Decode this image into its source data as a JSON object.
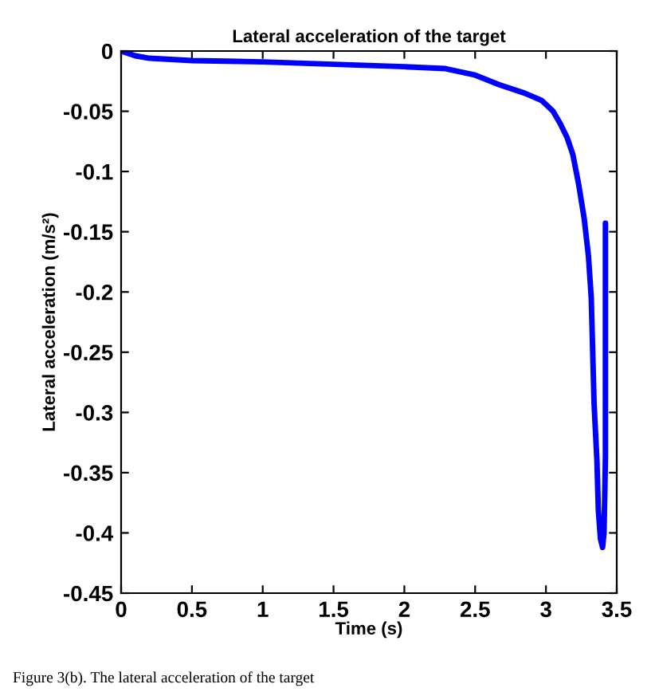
{
  "chart_data": {
    "type": "line",
    "title": "Lateral acceleration of the target",
    "xlabel": "Time (s)",
    "ylabel": "Lateral acceleration (m/s²)",
    "series": [
      {
        "color": "#0000ff",
        "x": [
          0,
          0.05,
          0.1,
          0.2,
          0.35,
          0.5,
          0.75,
          1,
          1.25,
          1.5,
          1.75,
          2,
          2.29,
          2.5,
          2.67,
          2.85,
          2.97,
          3.05,
          3.1,
          3.15,
          3.19,
          3.23,
          3.27,
          3.3,
          3.32,
          3.34,
          3.36,
          3.37,
          3.385,
          3.4,
          3.41,
          3.415,
          3.42,
          3.42
        ],
        "values": [
          0,
          -0.002,
          -0.004,
          -0.006,
          -0.007,
          -0.008,
          -0.0085,
          -0.009,
          -0.01,
          -0.011,
          -0.012,
          -0.013,
          -0.0146,
          -0.02,
          -0.028,
          -0.035,
          -0.041,
          -0.05,
          -0.06,
          -0.072,
          -0.086,
          -0.11,
          -0.139,
          -0.17,
          -0.205,
          -0.293,
          -0.34,
          -0.381,
          -0.405,
          -0.412,
          -0.4,
          -0.37,
          -0.337,
          -0.143
        ]
      }
    ],
    "xlim": [
      0,
      3.5
    ],
    "ylim": [
      -0.45,
      0
    ],
    "xticks": [
      0,
      0.5,
      1,
      1.5,
      2,
      2.5,
      3,
      3.5
    ],
    "yticks": [
      -0.45,
      -0.4,
      -0.35,
      -0.3,
      -0.25,
      -0.2,
      -0.15,
      -0.1,
      -0.05,
      0
    ],
    "grid": false,
    "legend": false,
    "marker": "none",
    "line_style": "solid",
    "annotations": [
      "Figure 3(b). The lateral acceleration of the target"
    ]
  }
}
